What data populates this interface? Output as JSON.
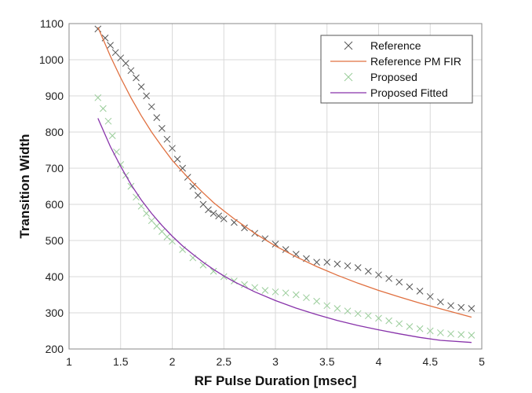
{
  "chart_data": {
    "type": "scatter",
    "title": "",
    "xlabel": "RF Pulse Duration [msec]",
    "ylabel": "Transition Width",
    "xlim": [
      1,
      5
    ],
    "ylim": [
      200,
      1100
    ],
    "xticks": [
      1,
      1.5,
      2,
      2.5,
      3,
      3.5,
      4,
      4.5,
      5
    ],
    "xtick_labels": [
      "1",
      "1.5",
      "2",
      "2.5",
      "3",
      "3.5",
      "4",
      "4.5",
      "5"
    ],
    "yticks": [
      200,
      300,
      400,
      500,
      600,
      700,
      800,
      900,
      1000,
      1100
    ],
    "ytick_labels": [
      "200",
      "300",
      "400",
      "500",
      "600",
      "700",
      "800",
      "900",
      "1000",
      "1100"
    ],
    "grid": true,
    "legend_position": "top-right",
    "series": [
      {
        "name": "Reference",
        "kind": "markers",
        "marker": "x",
        "color": "#555555",
        "x": [
          1.28,
          1.35,
          1.4,
          1.45,
          1.5,
          1.55,
          1.6,
          1.65,
          1.7,
          1.75,
          1.8,
          1.85,
          1.9,
          1.95,
          2.0,
          2.05,
          2.1,
          2.15,
          2.2,
          2.25,
          2.3,
          2.35,
          2.4,
          2.45,
          2.5,
          2.6,
          2.7,
          2.8,
          2.9,
          3.0,
          3.1,
          3.2,
          3.3,
          3.4,
          3.5,
          3.6,
          3.7,
          3.8,
          3.9,
          4.0,
          4.1,
          4.2,
          4.3,
          4.4,
          4.5,
          4.6,
          4.7,
          4.8,
          4.9
        ],
        "y": [
          1085,
          1060,
          1040,
          1020,
          1005,
          990,
          970,
          950,
          925,
          900,
          870,
          840,
          810,
          780,
          755,
          725,
          700,
          675,
          650,
          625,
          600,
          585,
          575,
          568,
          560,
          550,
          535,
          520,
          505,
          490,
          475,
          462,
          450,
          440,
          440,
          435,
          430,
          425,
          415,
          405,
          395,
          385,
          372,
          360,
          345,
          330,
          320,
          315,
          312
        ]
      },
      {
        "name": "Reference PM FIR",
        "kind": "line",
        "color": "#e07040",
        "x": [
          1.28,
          1.4,
          1.5,
          1.6,
          1.7,
          1.8,
          1.9,
          2.0,
          2.1,
          2.2,
          2.3,
          2.4,
          2.5,
          2.6,
          2.8,
          3.0,
          3.2,
          3.4,
          3.6,
          3.8,
          4.0,
          4.2,
          4.4,
          4.6,
          4.9
        ],
        "y": [
          1090,
          1010,
          950,
          895,
          845,
          800,
          760,
          722,
          690,
          660,
          632,
          605,
          582,
          560,
          520,
          485,
          455,
          428,
          404,
          382,
          362,
          344,
          327,
          311,
          288
        ]
      },
      {
        "name": "Proposed",
        "kind": "markers",
        "marker": "x",
        "color": "#99cc99",
        "x": [
          1.28,
          1.33,
          1.38,
          1.42,
          1.46,
          1.5,
          1.55,
          1.6,
          1.65,
          1.7,
          1.75,
          1.8,
          1.85,
          1.9,
          1.95,
          2.0,
          2.1,
          2.2,
          2.3,
          2.4,
          2.5,
          2.6,
          2.7,
          2.8,
          2.9,
          3.0,
          3.1,
          3.2,
          3.3,
          3.4,
          3.5,
          3.6,
          3.7,
          3.8,
          3.9,
          4.0,
          4.1,
          4.2,
          4.3,
          4.4,
          4.5,
          4.6,
          4.7,
          4.8,
          4.9
        ],
        "y": [
          895,
          865,
          830,
          790,
          745,
          710,
          680,
          650,
          620,
          595,
          575,
          555,
          540,
          525,
          510,
          498,
          475,
          452,
          432,
          415,
          400,
          388,
          378,
          370,
          362,
          358,
          355,
          350,
          342,
          332,
          320,
          312,
          305,
          298,
          292,
          285,
          278,
          270,
          262,
          256,
          250,
          245,
          242,
          240,
          238
        ]
      },
      {
        "name": "Proposed Fitted",
        "kind": "line",
        "color": "#8833aa",
        "x": [
          1.28,
          1.4,
          1.5,
          1.6,
          1.7,
          1.8,
          1.9,
          2.0,
          2.1,
          2.2,
          2.3,
          2.4,
          2.5,
          2.6,
          2.8,
          3.0,
          3.2,
          3.4,
          3.6,
          3.8,
          4.0,
          4.2,
          4.4,
          4.6,
          4.9
        ],
        "y": [
          838,
          760,
          705,
          655,
          612,
          575,
          542,
          512,
          485,
          462,
          440,
          420,
          402,
          386,
          358,
          334,
          313,
          295,
          279,
          265,
          253,
          242,
          232,
          224,
          218
        ]
      }
    ]
  }
}
